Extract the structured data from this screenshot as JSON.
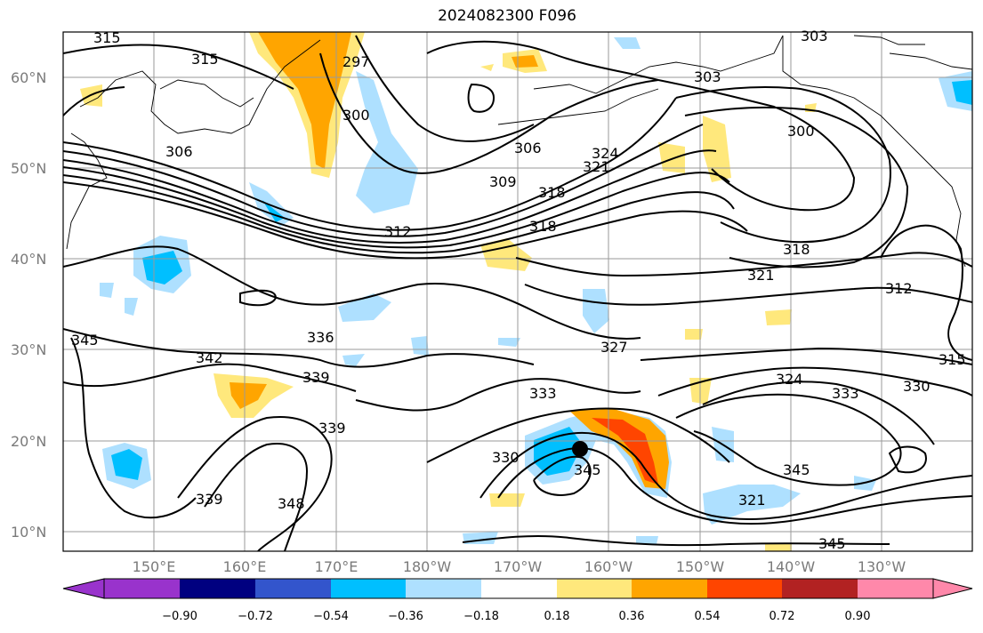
{
  "title": "2024082300 F096",
  "lat_labels": [
    "60°N",
    "50°N",
    "40°N",
    "30°N",
    "20°N",
    "10°N"
  ],
  "lon_labels": [
    "150°E",
    "160°E",
    "170°E",
    "180°W",
    "170°W",
    "160°W",
    "150°W",
    "140°W",
    "130°W"
  ],
  "colorbar": {
    "tick_labels": [
      "−0.90",
      "−0.72",
      "−0.54",
      "−0.36",
      "−0.18",
      "0.18",
      "0.36",
      "0.54",
      "0.72",
      "0.90"
    ],
    "colors": [
      "#9933cc",
      "#000080",
      "#3355cc",
      "#00bfff",
      "#aee0ff",
      "#ffffff",
      "#ffe87c",
      "#ffa500",
      "#ff4500",
      "#b22222",
      "#ff88aa",
      "#ff88aa"
    ]
  },
  "contour_labels": [
    "306",
    "312",
    "315",
    "318",
    "321",
    "324",
    "327",
    "330",
    "333",
    "336",
    "339",
    "342",
    "345",
    "348",
    "300",
    "297",
    "303",
    "309"
  ],
  "storm_marker": {
    "lat": 19,
    "lon": "163°W"
  }
}
